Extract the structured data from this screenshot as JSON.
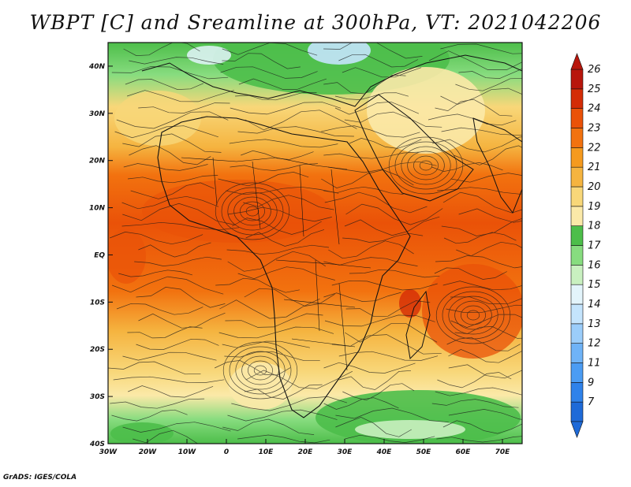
{
  "title": "WBPT [C] and Sreamline at 300hPa, VT: 2021042206",
  "credit": "GrADS: IGES/COLA",
  "map": {
    "lon_labels": [
      "30W",
      "20W",
      "10W",
      "0",
      "10E",
      "20E",
      "30E",
      "40E",
      "50E",
      "60E",
      "70E"
    ],
    "lon_values": [
      -30,
      -20,
      -10,
      0,
      10,
      20,
      30,
      40,
      50,
      60,
      70
    ],
    "lat_labels": [
      "40N",
      "30N",
      "20N",
      "10N",
      "EQ",
      "10S",
      "20S",
      "30S",
      "40S"
    ],
    "lat_values": [
      40,
      30,
      20,
      10,
      0,
      -10,
      -20,
      -30,
      -40
    ],
    "lon_range": [
      -30,
      75
    ],
    "lat_range": [
      -40,
      45
    ]
  },
  "colorbar": {
    "labels": [
      "7",
      "9",
      "11",
      "12",
      "13",
      "14",
      "15",
      "16",
      "17",
      "18",
      "19",
      "20",
      "21",
      "22",
      "23",
      "24",
      "25",
      "26"
    ],
    "colors": [
      "#1e6ad8",
      "#2f82ea",
      "#4b9cf3",
      "#6fb3f7",
      "#9bcdfa",
      "#c4e4fc",
      "#e3f4fb",
      "#c9f0c0",
      "#87dc7f",
      "#4dbe4a",
      "#fbe9a8",
      "#f8d779",
      "#f5b440",
      "#f59a1e",
      "#f2720f",
      "#ea5208",
      "#d42c06",
      "#b8160c"
    ]
  },
  "legend_title": "",
  "units": "C"
}
